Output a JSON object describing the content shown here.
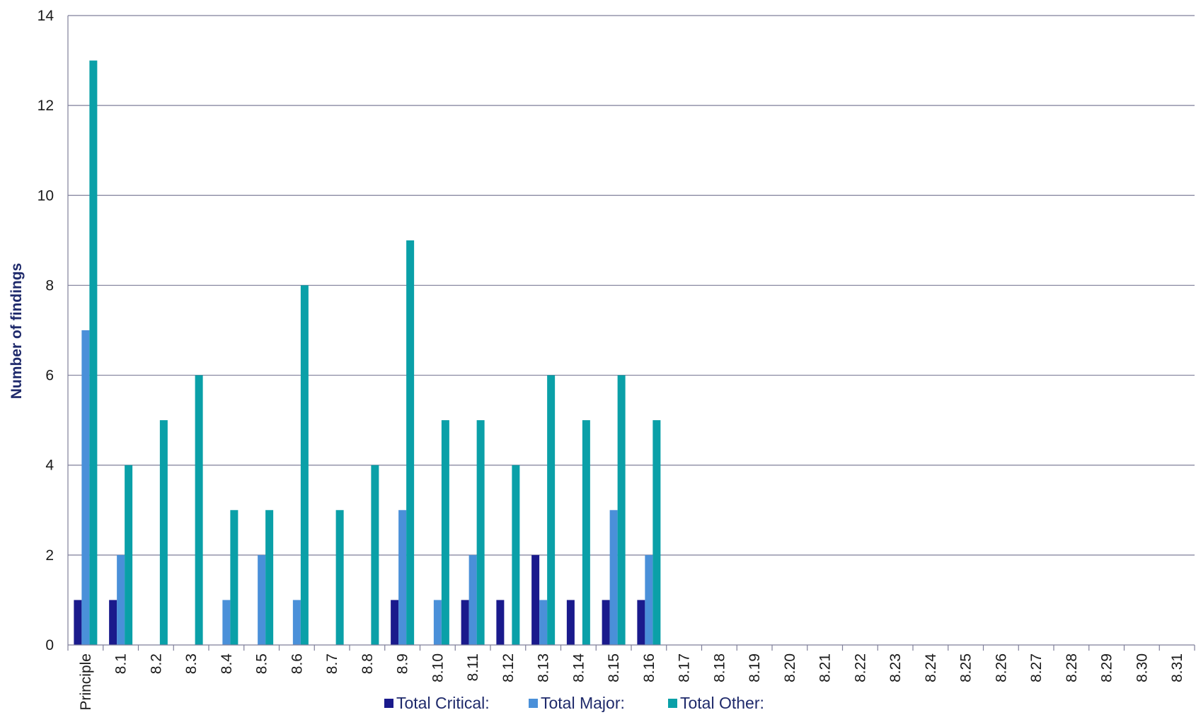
{
  "chart_data": {
    "type": "bar",
    "title": "",
    "xlabel": "",
    "ylabel": "Number of findings",
    "ylim": [
      0,
      14
    ],
    "yticks": [
      0,
      2,
      4,
      6,
      8,
      10,
      12,
      14
    ],
    "grid": "horizontal",
    "legend_position": "bottom",
    "categories": [
      "Principle",
      "8.1",
      "8.2",
      "8.3",
      "8.4",
      "8.5",
      "8.6",
      "8.7",
      "8.8",
      "8.9",
      "8.10",
      "8.11",
      "8.12",
      "8.13",
      "8.14",
      "8.15",
      "8.16",
      "8.17",
      "8.18",
      "8.19",
      "8.20",
      "8.21",
      "8.22",
      "8.23",
      "8.24",
      "8.25",
      "8.26",
      "8.27",
      "8.28",
      "8.29",
      "8.30",
      "8.31"
    ],
    "series": [
      {
        "name": "Total Critical:",
        "color": "#1a1a8c",
        "values": [
          1,
          1,
          0,
          0,
          0,
          0,
          0,
          0,
          0,
          1,
          0,
          1,
          1,
          2,
          1,
          1,
          1,
          0,
          0,
          0,
          0,
          0,
          0,
          0,
          0,
          0,
          0,
          0,
          0,
          0,
          0,
          0
        ]
      },
      {
        "name": "Total Major:",
        "color": "#4a90d9",
        "values": [
          7,
          2,
          0,
          0,
          1,
          2,
          1,
          0,
          0,
          3,
          1,
          2,
          0,
          1,
          0,
          3,
          2,
          0,
          0,
          0,
          0,
          0,
          0,
          0,
          0,
          0,
          0,
          0,
          0,
          0,
          0,
          0
        ]
      },
      {
        "name": "Total Other:",
        "color": "#0aa0a8",
        "values": [
          13,
          4,
          5,
          6,
          3,
          3,
          8,
          3,
          4,
          9,
          5,
          5,
          4,
          6,
          5,
          6,
          5,
          0,
          0,
          0,
          0,
          0,
          0,
          0,
          0,
          0,
          0,
          0,
          0,
          0,
          0,
          0
        ]
      }
    ]
  }
}
